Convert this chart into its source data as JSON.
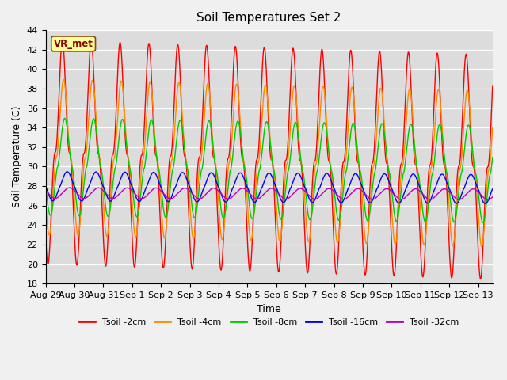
{
  "title": "Soil Temperatures Set 2",
  "xlabel": "Time",
  "ylabel": "Soil Temperature (C)",
  "ylim": [
    18,
    44
  ],
  "yticks": [
    18,
    20,
    22,
    24,
    26,
    28,
    30,
    32,
    34,
    36,
    38,
    40,
    42,
    44
  ],
  "bg_color": "#dcdcdc",
  "fig_facecolor": "#f0f0f0",
  "series_colors": {
    "Tsoil -2cm": "#ff0000",
    "Tsoil -4cm": "#ff8c00",
    "Tsoil -8cm": "#00cc00",
    "Tsoil -16cm": "#0000ff",
    "Tsoil -32cm": "#bb00bb"
  },
  "xtick_labels": [
    "Aug 29",
    "Aug 30",
    "Aug 31",
    "Sep 1",
    "Sep 2",
    "Sep 3",
    "Sep 4",
    "Sep 5",
    "Sep 6",
    "Sep 7",
    "Sep 8",
    "Sep 9",
    "Sep 10",
    "Sep 11",
    "Sep 12",
    "Sep 13"
  ],
  "annotation_text": "VR_met",
  "annotation_color": "#8B0000",
  "annotation_bg": "#ffff99",
  "annotation_border": "#8B4513",
  "linewidth": 1.0,
  "n_total_days": 15.5,
  "dt_hours": 0.1
}
